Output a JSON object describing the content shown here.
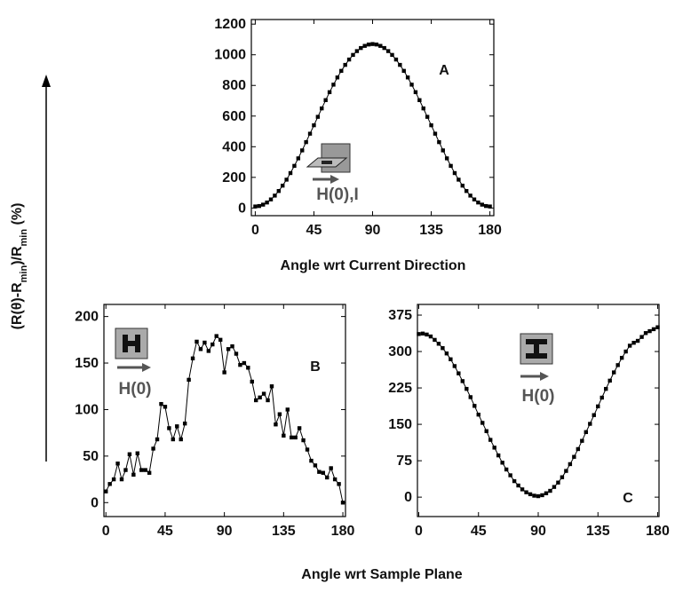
{
  "shared": {
    "y_label": [
      "(R(θ)-R",
      "min",
      ")/R",
      "min",
      " (%)"
    ],
    "x_label": "Angle wrt Sample Plane"
  },
  "chart_data": [
    {
      "type": "line",
      "panel_label": "A",
      "x_label": "Angle wrt Current Direction",
      "annotation": "H(0),I",
      "color": "#000000",
      "x": [
        0,
        3,
        6,
        9,
        12,
        15,
        18,
        21,
        24,
        27,
        30,
        33,
        36,
        39,
        42,
        45,
        48,
        51,
        54,
        57,
        60,
        63,
        66,
        69,
        72,
        75,
        78,
        81,
        84,
        87,
        90,
        93,
        96,
        99,
        102,
        105,
        108,
        111,
        114,
        117,
        120,
        123,
        126,
        129,
        132,
        135,
        138,
        141,
        144,
        147,
        150,
        153,
        156,
        159,
        162,
        165,
        168,
        171,
        174,
        177,
        180
      ],
      "values": [
        10,
        13,
        22,
        36,
        56,
        81,
        111,
        146,
        185,
        228,
        275,
        324,
        376,
        430,
        485,
        540,
        595,
        650,
        704,
        756,
        805,
        852,
        895,
        934,
        969,
        999,
        1024,
        1044,
        1058,
        1067,
        1070,
        1067,
        1058,
        1044,
        1024,
        999,
        969,
        934,
        895,
        852,
        805,
        756,
        704,
        650,
        595,
        540,
        485,
        430,
        376,
        324,
        275,
        228,
        185,
        146,
        111,
        81,
        56,
        36,
        22,
        13,
        10
      ],
      "xlim": [
        -3,
        183
      ],
      "ylim": [
        -50,
        1230
      ],
      "xticks": [
        0,
        45,
        90,
        135,
        180
      ],
      "yticks": [
        0,
        200,
        400,
        600,
        800,
        1000,
        1200
      ]
    },
    {
      "type": "line",
      "panel_label": "B",
      "annotation": "H(0)",
      "color": "#000000",
      "x": [
        0,
        3,
        6,
        9,
        12,
        15,
        18,
        21,
        24,
        27,
        30,
        33,
        36,
        39,
        42,
        45,
        48,
        51,
        54,
        57,
        60,
        63,
        66,
        69,
        72,
        75,
        78,
        81,
        84,
        87,
        90,
        93,
        96,
        99,
        102,
        105,
        108,
        111,
        114,
        117,
        120,
        123,
        126,
        129,
        132,
        135,
        138,
        141,
        144,
        147,
        150,
        153,
        156,
        159,
        162,
        165,
        168,
        171,
        174,
        177,
        180
      ],
      "values": [
        12,
        20,
        25,
        42,
        25,
        35,
        52,
        30,
        53,
        35,
        35,
        32,
        58,
        68,
        106,
        103,
        80,
        68,
        82,
        68,
        85,
        132,
        155,
        173,
        165,
        172,
        163,
        170,
        179,
        175,
        140,
        165,
        168,
        160,
        148,
        150,
        145,
        130,
        110,
        113,
        117,
        110,
        125,
        84,
        95,
        72,
        100,
        70,
        70,
        80,
        67,
        57,
        45,
        40,
        33,
        32,
        27,
        37,
        25,
        20,
        0
      ],
      "xlim": [
        -1.5,
        182
      ],
      "ylim": [
        -15,
        213
      ],
      "xticks": [
        0,
        45,
        90,
        135,
        180
      ],
      "yticks": [
        0,
        50,
        100,
        150,
        200
      ]
    },
    {
      "type": "line",
      "panel_label": "C",
      "annotation": "H(0)",
      "color": "#000000",
      "x": [
        0,
        3,
        6,
        9,
        12,
        15,
        18,
        21,
        24,
        27,
        30,
        33,
        36,
        39,
        42,
        45,
        48,
        51,
        54,
        57,
        60,
        63,
        66,
        69,
        72,
        75,
        78,
        81,
        84,
        87,
        90,
        93,
        96,
        99,
        102,
        105,
        108,
        111,
        114,
        117,
        120,
        123,
        126,
        129,
        132,
        135,
        138,
        141,
        144,
        147,
        150,
        153,
        156,
        159,
        162,
        165,
        168,
        171,
        174,
        177,
        180
      ],
      "values": [
        336,
        337,
        335,
        331,
        324,
        316,
        307,
        296,
        284,
        270,
        255,
        239,
        223,
        206,
        188,
        170,
        153,
        136,
        118,
        102,
        86,
        71,
        57,
        45,
        33,
        24,
        16,
        10,
        6,
        3,
        2,
        4,
        8,
        13,
        21,
        30,
        41,
        54,
        68,
        83,
        99,
        116,
        134,
        151,
        169,
        187,
        205,
        223,
        240,
        257,
        272,
        287,
        300,
        312,
        318,
        322,
        330,
        338,
        342,
        346,
        350
      ],
      "xlim": [
        -1,
        181
      ],
      "ylim": [
        -40,
        397
      ],
      "xticks": [
        0,
        45,
        90,
        135,
        180
      ],
      "yticks": [
        0,
        75,
        150,
        225,
        300,
        375
      ]
    }
  ]
}
